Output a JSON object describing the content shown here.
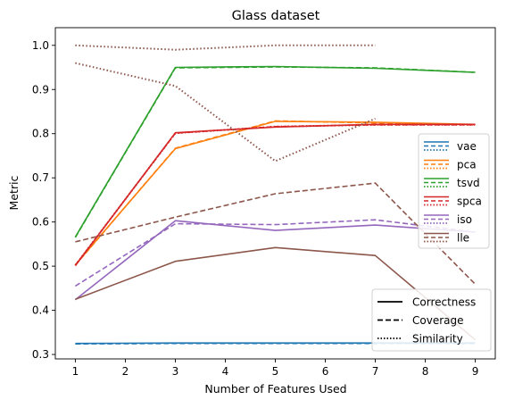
{
  "chart_data": {
    "type": "line",
    "title": "Glass dataset",
    "xlabel": "Number of Features Used",
    "ylabel": "Metric",
    "xlim": [
      0.6,
      9.4
    ],
    "ylim": [
      0.29,
      1.04
    ],
    "xticks": [
      1,
      2,
      3,
      4,
      5,
      6,
      7,
      8,
      9
    ],
    "yticks": [
      0.3,
      0.4,
      0.5,
      0.6,
      0.7,
      0.8,
      0.9,
      1.0
    ],
    "ytick_labels": [
      "0.3",
      "0.4",
      "0.5",
      "0.6",
      "0.7",
      "0.8",
      "0.9",
      "1.0"
    ],
    "grid": false,
    "legend_methods_position": "right",
    "legend_metrics_position": "lower-right",
    "x": [
      1,
      3,
      5,
      7,
      9
    ],
    "methods": [
      {
        "name": "vae",
        "color": "#1f77b4",
        "correctness": [
          0.325,
          0.326,
          0.326,
          0.326,
          0.326
        ],
        "coverage": [
          0.324,
          0.325,
          0.325,
          0.325,
          0.325
        ],
        "similarity": null
      },
      {
        "name": "pca",
        "color": "#ff7f0e",
        "correctness": [
          0.503,
          0.766,
          0.828,
          0.826,
          0.821
        ],
        "coverage": [
          0.502,
          0.767,
          0.829,
          0.824,
          0.82
        ],
        "similarity": null
      },
      {
        "name": "tsvd",
        "color": "#2ca02c",
        "correctness": [
          0.566,
          0.95,
          0.952,
          0.948,
          0.939
        ],
        "coverage": [
          0.565,
          0.949,
          0.951,
          0.949,
          0.939
        ],
        "similarity": null
      },
      {
        "name": "spca",
        "color": "#d62728",
        "correctness": [
          0.501,
          0.802,
          0.815,
          0.821,
          0.821
        ],
        "coverage": [
          0.502,
          0.801,
          0.816,
          0.82,
          0.82
        ],
        "similarity": [
          0.502,
          0.801,
          0.816,
          0.82,
          0.82
        ]
      },
      {
        "name": "iso",
        "color": "#9467bd",
        "correctness": [
          0.424,
          0.603,
          0.581,
          0.593,
          0.577
        ],
        "coverage": [
          0.455,
          0.596,
          0.594,
          0.605,
          0.577
        ],
        "similarity": null
      },
      {
        "name": "lle",
        "color": "#8c564b",
        "correctness": [
          0.425,
          0.511,
          0.542,
          0.524,
          0.333
        ],
        "coverage": [
          0.555,
          0.611,
          0.664,
          0.688,
          0.459
        ],
        "similarity": [
          0.96,
          0.908,
          0.738,
          0.834,
          null
        ],
        "similarity_top": [
          1.0,
          0.99,
          1.0,
          1.0,
          null
        ]
      }
    ],
    "metric_legend": [
      {
        "name": "Correctness",
        "dash": "solid"
      },
      {
        "name": "Coverage",
        "dash": "dashed"
      },
      {
        "name": "Similarity",
        "dash": "dotted"
      }
    ]
  }
}
